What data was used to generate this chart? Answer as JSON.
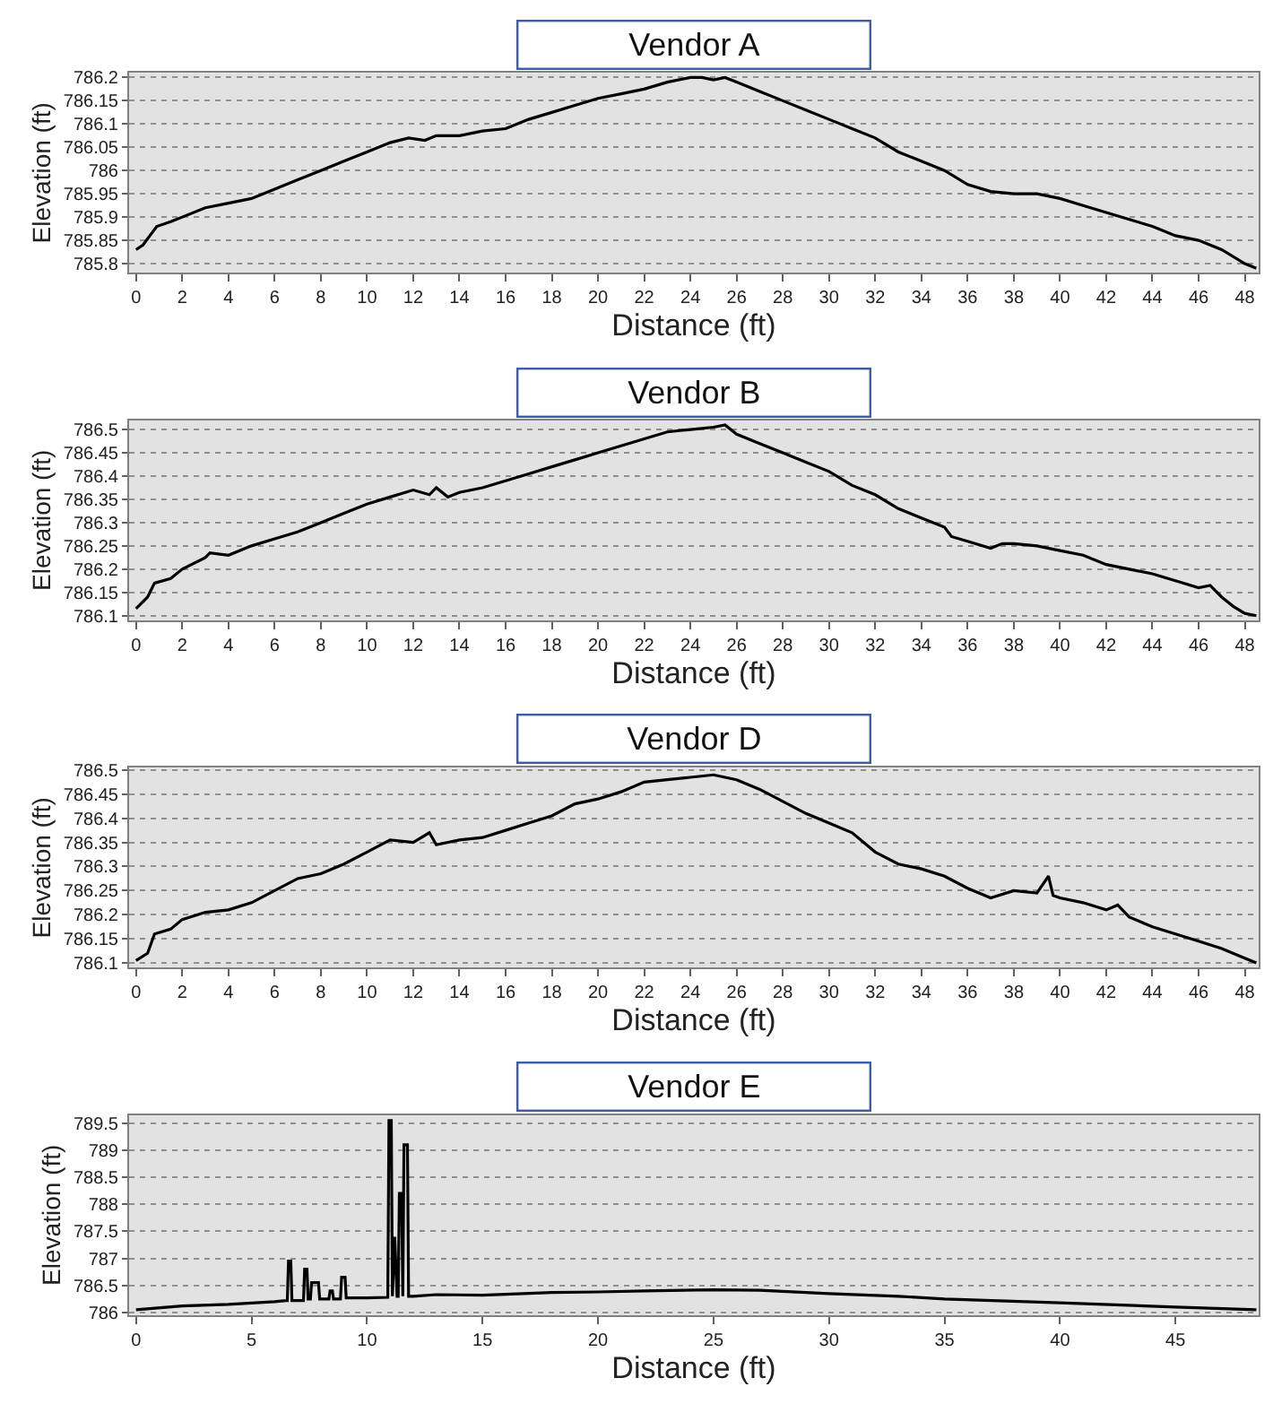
{
  "chart_data": [
    {
      "type": "line",
      "title": "Vendor A",
      "xlabel": "Distance (ft)",
      "ylabel": "Elevation (ft)",
      "grid": "y",
      "line_style": "solid",
      "marker": "none",
      "series": [
        {
          "color": "#000000",
          "x": [
            0,
            0.3,
            0.6,
            0.9,
            1.5,
            2,
            3,
            4,
            5,
            6,
            7,
            8,
            9,
            10,
            11,
            11.8,
            12.5,
            13,
            14,
            15,
            16,
            17,
            18,
            19,
            20,
            21,
            22,
            23,
            24,
            24.5,
            25,
            25.5,
            26,
            27,
            28,
            29,
            30,
            31,
            32,
            33,
            34,
            35,
            36,
            37,
            38,
            39,
            40,
            41,
            42,
            43,
            44,
            45,
            46,
            47,
            48,
            48.5
          ],
          "values": [
            785.83,
            785.84,
            785.86,
            785.88,
            785.89,
            785.9,
            785.92,
            785.93,
            785.94,
            785.96,
            785.98,
            786.0,
            786.02,
            786.04,
            786.06,
            786.07,
            786.065,
            786.075,
            786.075,
            786.085,
            786.09,
            786.11,
            786.125,
            786.14,
            786.155,
            786.165,
            786.175,
            786.19,
            786.2,
            786.2,
            786.195,
            786.2,
            786.19,
            786.17,
            786.15,
            786.13,
            786.11,
            786.09,
            786.07,
            786.04,
            786.02,
            786.0,
            785.97,
            785.955,
            785.95,
            785.95,
            785.94,
            785.925,
            785.91,
            785.895,
            785.88,
            785.86,
            785.85,
            785.83,
            785.8,
            785.79
          ]
        }
      ],
      "xlim": [
        -0.3,
        48.6
      ],
      "ylim": [
        785.78,
        786.21
      ],
      "xticks": [
        0,
        2,
        4,
        6,
        8,
        10,
        12,
        14,
        16,
        18,
        20,
        22,
        24,
        26,
        28,
        30,
        32,
        34,
        36,
        38,
        40,
        42,
        44,
        46,
        48
      ],
      "yticks": [
        785.8,
        785.85,
        785.9,
        785.95,
        786,
        786.05,
        786.1,
        786.15,
        786.2
      ]
    },
    {
      "type": "line",
      "title": "Vendor B",
      "xlabel": "Distance (ft)",
      "ylabel": "Elevation (ft)",
      "grid": "y",
      "line_style": "solid",
      "marker": "none",
      "series": [
        {
          "color": "#000000",
          "x": [
            0,
            0.5,
            0.8,
            1.5,
            2,
            3,
            3.2,
            4,
            5,
            6,
            7,
            8,
            9,
            10,
            11,
            12,
            12.7,
            13,
            13.5,
            14,
            15,
            16,
            17,
            18,
            19,
            20,
            21,
            22,
            23,
            24,
            25,
            25.5,
            26,
            27,
            28,
            29,
            30,
            31,
            32,
            33,
            34,
            35,
            35.3,
            36,
            37,
            37.5,
            38,
            39,
            40,
            41,
            42,
            43,
            44,
            45,
            46,
            46.5,
            47,
            47.5,
            48,
            48.5
          ],
          "values": [
            786.115,
            786.14,
            786.17,
            786.18,
            786.2,
            786.225,
            786.235,
            786.23,
            786.25,
            786.265,
            786.28,
            786.3,
            786.32,
            786.34,
            786.355,
            786.37,
            786.36,
            786.375,
            786.355,
            786.365,
            786.375,
            786.39,
            786.405,
            786.42,
            786.435,
            786.45,
            786.465,
            786.48,
            786.495,
            786.5,
            786.505,
            786.51,
            786.49,
            786.47,
            786.45,
            786.43,
            786.41,
            786.38,
            786.36,
            786.33,
            786.31,
            786.29,
            786.27,
            786.26,
            786.245,
            786.255,
            786.255,
            786.25,
            786.24,
            786.23,
            786.21,
            786.2,
            786.19,
            786.175,
            786.16,
            786.165,
            786.14,
            786.12,
            786.105,
            786.1
          ]
        }
      ],
      "xlim": [
        -0.3,
        48.6
      ],
      "ylim": [
        786.09,
        786.52
      ],
      "xticks": [
        0,
        2,
        4,
        6,
        8,
        10,
        12,
        14,
        16,
        18,
        20,
        22,
        24,
        26,
        28,
        30,
        32,
        34,
        36,
        38,
        40,
        42,
        44,
        46,
        48
      ],
      "yticks": [
        786.1,
        786.15,
        786.2,
        786.25,
        786.3,
        786.35,
        786.4,
        786.45,
        786.5
      ]
    },
    {
      "type": "line",
      "title": "Vendor D",
      "xlabel": "Distance (ft)",
      "ylabel": "Elevation (ft)",
      "grid": "y",
      "line_style": "solid",
      "marker": "none",
      "series": [
        {
          "color": "#000000",
          "x": [
            0,
            0.5,
            0.8,
            1.5,
            2,
            3,
            4,
            5,
            6,
            7,
            8,
            9,
            10,
            11,
            12,
            12.7,
            13,
            14,
            15,
            16,
            17,
            18,
            19,
            20,
            21,
            22,
            23,
            24,
            25,
            26,
            27,
            28,
            29,
            30,
            31,
            32,
            33,
            34,
            35,
            36,
            37,
            38,
            39,
            39.5,
            39.7,
            40,
            41,
            42,
            42.5,
            43,
            44,
            45,
            46,
            47,
            48,
            48.5
          ],
          "values": [
            786.105,
            786.12,
            786.16,
            786.17,
            786.19,
            786.205,
            786.21,
            786.225,
            786.25,
            786.275,
            786.285,
            786.305,
            786.33,
            786.355,
            786.35,
            786.37,
            786.345,
            786.355,
            786.36,
            786.375,
            786.39,
            786.405,
            786.43,
            786.44,
            786.455,
            786.475,
            786.48,
            786.485,
            786.49,
            786.48,
            786.46,
            786.435,
            786.41,
            786.39,
            786.37,
            786.33,
            786.305,
            786.295,
            786.28,
            786.255,
            786.235,
            786.25,
            786.245,
            786.28,
            786.24,
            786.235,
            786.225,
            786.21,
            786.22,
            786.195,
            786.175,
            786.16,
            786.145,
            786.13,
            786.11,
            786.1
          ]
        }
      ],
      "xlim": [
        -0.3,
        48.6
      ],
      "ylim": [
        786.09,
        786.505
      ],
      "xticks": [
        0,
        2,
        4,
        6,
        8,
        10,
        12,
        14,
        16,
        18,
        20,
        22,
        24,
        26,
        28,
        30,
        32,
        34,
        36,
        38,
        40,
        42,
        44,
        46,
        48
      ],
      "yticks": [
        786.1,
        786.15,
        786.2,
        786.25,
        786.3,
        786.35,
        786.4,
        786.45,
        786.5
      ]
    },
    {
      "type": "line",
      "title": "Vendor E",
      "xlabel": "Distance (ft)",
      "ylabel": "Elevation (ft)",
      "grid": "y",
      "line_style": "solid",
      "marker": "none",
      "series": [
        {
          "color": "#000000",
          "x": [
            0,
            2,
            4,
            6,
            6.5,
            6.55,
            6.6,
            6.7,
            6.75,
            7.25,
            7.3,
            7.4,
            7.45,
            7.55,
            7.6,
            7.9,
            7.95,
            8.35,
            8.4,
            8.5,
            8.55,
            8.85,
            8.9,
            9.05,
            9.1,
            10,
            10.9,
            10.95,
            11.05,
            11.1,
            11.2,
            11.3,
            11.35,
            11.4,
            11.5,
            11.55,
            11.6,
            11.75,
            11.8,
            12,
            13,
            15,
            18,
            20,
            22,
            25,
            27,
            30,
            33,
            35,
            40,
            45,
            48.5
          ],
          "values": [
            786.05,
            786.12,
            786.15,
            786.2,
            786.22,
            786.22,
            786.95,
            786.95,
            786.22,
            786.22,
            786.8,
            786.8,
            786.25,
            786.25,
            786.55,
            786.55,
            786.25,
            786.25,
            786.4,
            786.4,
            786.25,
            786.25,
            786.65,
            786.65,
            786.27,
            786.27,
            786.28,
            789.55,
            789.55,
            786.3,
            787.4,
            786.3,
            786.3,
            788.2,
            788.2,
            786.3,
            789.1,
            789.1,
            786.3,
            786.3,
            786.33,
            786.32,
            786.37,
            786.38,
            786.4,
            786.42,
            786.41,
            786.35,
            786.3,
            786.25,
            786.18,
            786.1,
            786.05
          ]
        }
      ],
      "xlim": [
        -0.3,
        48.6
      ],
      "ylim": [
        785.95,
        789.65
      ],
      "xticks": [
        0,
        5,
        10,
        15,
        20,
        25,
        30,
        35,
        40,
        45
      ],
      "yticks": [
        786,
        786.5,
        787,
        787.5,
        788,
        788.5,
        789,
        789.5
      ]
    }
  ]
}
